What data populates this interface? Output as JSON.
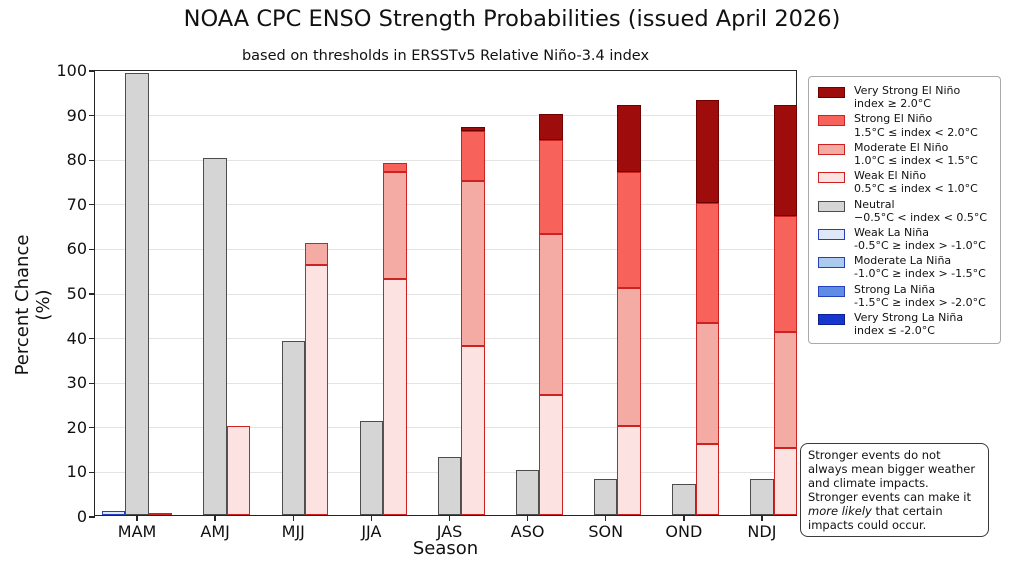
{
  "title": "NOAA CPC ENSO Strength Probabilities (issued April 2026)",
  "subtitle": "based on thresholds in ERSSTv5 Relative Niño-3.4 index",
  "y_axis": {
    "label": "Percent Chance (%)",
    "ticks": [
      0,
      10,
      20,
      30,
      40,
      50,
      60,
      70,
      80,
      90,
      100
    ]
  },
  "x_axis": {
    "label": "Season"
  },
  "note": {
    "pre": "Stronger events do not always mean bigger weather and climate impacts. Stronger events can make it ",
    "italic": "more likely",
    "post": " that certain impacts could occur."
  },
  "colors": {
    "axis": "#262626",
    "gridline": "#e4e4e4",
    "background": "#ffffff"
  },
  "legend": {
    "items": [
      {
        "key": "very-strong-el-nino",
        "label": "Very Strong El Niño",
        "sublabel": "index ≥ 2.0°C",
        "fill": "#9e0c0c",
        "edge": "#6e0000"
      },
      {
        "key": "strong-el-nino",
        "label": "Strong El Niño",
        "sublabel": "1.5°C ≤ index < 2.0°C",
        "fill": "#f7625a",
        "edge": "#cc2222"
      },
      {
        "key": "moderate-el-nino",
        "label": "Moderate El Niño",
        "sublabel": "1.0°C ≤ index < 1.5°C",
        "fill": "#f3aba4",
        "edge": "#cc2222"
      },
      {
        "key": "weak-el-nino",
        "label": "Weak El Niño",
        "sublabel": "0.5°C ≤ index < 1.0°C",
        "fill": "#fce2e0",
        "edge": "#cc2222"
      },
      {
        "key": "neutral",
        "label": "Neutral",
        "sublabel": "−0.5°C < index < 0.5°C",
        "fill": "#d5d5d5",
        "edge": "#4d4d4d"
      },
      {
        "key": "weak-la-nina",
        "label": "Weak La Niña",
        "sublabel": "-0.5°C ≥ index > -1.0°C",
        "fill": "#dfe8f8",
        "edge": "#2440bd"
      },
      {
        "key": "moderate-la-nina",
        "label": "Moderate La Niña",
        "sublabel": "-1.0°C ≥ index > -1.5°C",
        "fill": "#accaf0",
        "edge": "#2440bd"
      },
      {
        "key": "strong-la-nina",
        "label": "Strong La Niña",
        "sublabel": "-1.5°C ≥ index > -2.0°C",
        "fill": "#5f8ce4",
        "edge": "#2440bd"
      },
      {
        "key": "very-strong-la-nina",
        "label": "Very Strong La Niña",
        "sublabel": "index ≤ -2.0°C",
        "fill": "#1736cf",
        "edge": "#0c208f"
      }
    ]
  },
  "chart_data": {
    "type": "bar",
    "stacked": true,
    "title": "NOAA CPC ENSO Strength Probabilities (issued April 2026)",
    "xlabel": "Season",
    "ylabel": "Percent Chance (%)",
    "ylim": [
      0,
      100
    ],
    "grid": true,
    "legend_position": "right",
    "categories": [
      "MAM",
      "AMJ",
      "MJJ",
      "JJA",
      "JAS",
      "ASO",
      "SON",
      "OND",
      "NDJ"
    ],
    "series": [
      {
        "key": "weak-la-nina",
        "name": "Weak La Niña",
        "group": "la_nina",
        "fill": "#dfe8f8",
        "edge": "#2440bd",
        "values": [
          1,
          0,
          0,
          0,
          0,
          0,
          0,
          0,
          0
        ]
      },
      {
        "key": "moderate-la-nina",
        "name": "Moderate La Niña",
        "group": "la_nina",
        "fill": "#accaf0",
        "edge": "#2440bd",
        "values": [
          0,
          0,
          0,
          0,
          0,
          0,
          0,
          0,
          0
        ]
      },
      {
        "key": "strong-la-nina",
        "name": "Strong La Niña",
        "group": "la_nina",
        "fill": "#5f8ce4",
        "edge": "#2440bd",
        "values": [
          0,
          0,
          0,
          0,
          0,
          0,
          0,
          0,
          0
        ]
      },
      {
        "key": "very-strong-la-nina",
        "name": "Very Strong La Niña",
        "group": "la_nina",
        "fill": "#1736cf",
        "edge": "#0c208f",
        "values": [
          0,
          0,
          0,
          0,
          0,
          0,
          0,
          0,
          0
        ]
      },
      {
        "key": "neutral",
        "name": "Neutral",
        "group": "neutral",
        "fill": "#d5d5d5",
        "edge": "#4d4d4d",
        "values": [
          99,
          80,
          39,
          21,
          13,
          10,
          8,
          7,
          8
        ]
      },
      {
        "key": "weak-el-nino",
        "name": "Weak El Niño",
        "group": "el_nino",
        "fill": "#fce2e0",
        "edge": "#cc2222",
        "values": [
          0.2,
          20,
          56,
          53,
          38,
          27,
          20,
          16,
          15
        ]
      },
      {
        "key": "moderate-el-nino",
        "name": "Moderate El Niño",
        "group": "el_nino",
        "fill": "#f3aba4",
        "edge": "#cc2222",
        "values": [
          0,
          0,
          5,
          24,
          37,
          36,
          31,
          27,
          26
        ]
      },
      {
        "key": "strong-el-nino",
        "name": "Strong El Niño",
        "group": "el_nino",
        "fill": "#f7625a",
        "edge": "#cc2222",
        "values": [
          0,
          0,
          0,
          2,
          11,
          21,
          26,
          27,
          26
        ]
      },
      {
        "key": "very-strong-el-nino",
        "name": "Very Strong El Niño",
        "group": "el_nino",
        "fill": "#9e0c0c",
        "edge": "#6e0000",
        "values": [
          0,
          0,
          0,
          0,
          1,
          6,
          15,
          23,
          25
        ]
      }
    ]
  }
}
